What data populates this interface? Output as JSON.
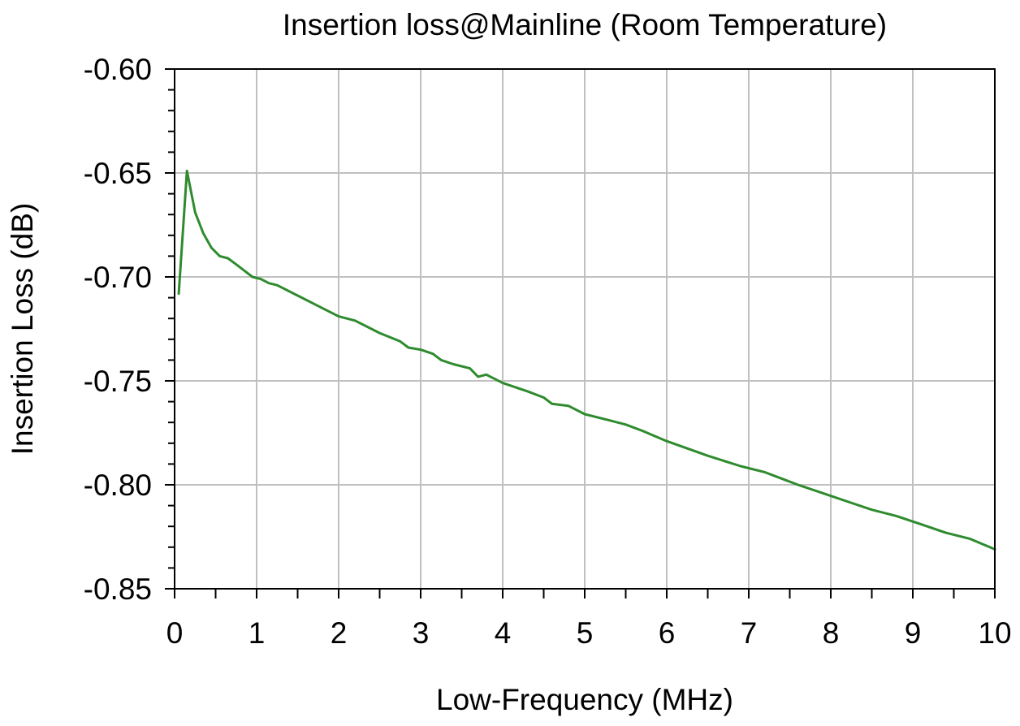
{
  "chart_data": {
    "type": "line",
    "title": "Insertion loss@Mainline (Room Temperature)",
    "xlabel": "Low-Frequency (MHz)",
    "ylabel": "Insertion Loss (dB)",
    "xlim": [
      0,
      10
    ],
    "ylim": [
      -0.85,
      -0.6
    ],
    "x_ticks": [
      0,
      1,
      2,
      3,
      4,
      5,
      6,
      7,
      8,
      9,
      10
    ],
    "x_tick_labels": [
      "0",
      "1",
      "2",
      "3",
      "4",
      "5",
      "6",
      "7",
      "8",
      "9",
      "10"
    ],
    "y_ticks": [
      -0.6,
      -0.65,
      -0.7,
      -0.75,
      -0.8,
      -0.85
    ],
    "y_tick_labels": [
      "-0.60",
      "-0.65",
      "-0.70",
      "-0.75",
      "-0.80",
      "-0.85"
    ],
    "grid": true,
    "legend": "none",
    "series": [
      {
        "color": "#2e8b2e",
        "x": [
          0.05,
          0.15,
          0.25,
          0.35,
          0.45,
          0.55,
          0.65,
          0.75,
          0.85,
          0.95,
          1.05,
          1.15,
          1.25,
          1.5,
          1.75,
          2.0,
          2.1,
          2.2,
          2.5,
          2.75,
          2.85,
          3.0,
          3.15,
          3.25,
          3.4,
          3.6,
          3.7,
          3.8,
          4.0,
          4.3,
          4.5,
          4.6,
          4.8,
          5.0,
          5.3,
          5.5,
          5.7,
          6.0,
          6.5,
          6.9,
          7.2,
          7.4,
          7.6,
          7.9,
          8.2,
          8.5,
          8.8,
          9.1,
          9.4,
          9.7,
          10.0
        ],
        "y": [
          -0.708,
          -0.649,
          -0.669,
          -0.679,
          -0.686,
          -0.69,
          -0.691,
          -0.694,
          -0.697,
          -0.7,
          -0.701,
          -0.703,
          -0.704,
          -0.709,
          -0.714,
          -0.719,
          -0.72,
          -0.721,
          -0.727,
          -0.731,
          -0.734,
          -0.735,
          -0.737,
          -0.74,
          -0.742,
          -0.744,
          -0.748,
          -0.747,
          -0.751,
          -0.755,
          -0.758,
          -0.761,
          -0.762,
          -0.766,
          -0.769,
          -0.771,
          -0.774,
          -0.779,
          -0.786,
          -0.791,
          -0.794,
          -0.797,
          -0.8,
          -0.804,
          -0.808,
          -0.812,
          -0.815,
          -0.819,
          -0.823,
          -0.826,
          -0.831
        ]
      }
    ]
  }
}
